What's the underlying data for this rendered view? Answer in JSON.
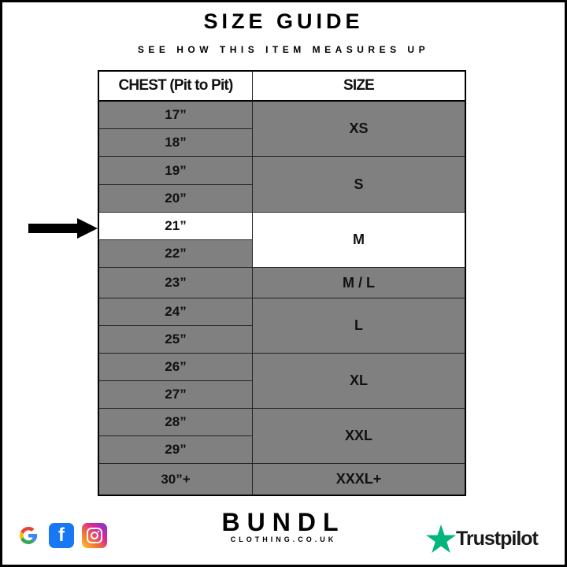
{
  "title": "SIZE GUIDE",
  "subtitle": "SEE HOW THIS ITEM MEASURES UP",
  "table": {
    "headers": [
      "CHEST (Pit to Pit)",
      "SIZE"
    ],
    "chest": [
      "17”",
      "18”",
      "19”",
      "20”",
      "21”",
      "22”",
      "23”",
      "24”",
      "25”",
      "26”",
      "27”",
      "28”",
      "29”",
      "30”+"
    ],
    "sizes": [
      {
        "label": "XS",
        "rows": 2
      },
      {
        "label": "S",
        "rows": 2
      },
      {
        "label": "M",
        "rows": 2
      },
      {
        "label": "M / L",
        "rows": 1
      },
      {
        "label": "L",
        "rows": 2
      },
      {
        "label": "XL",
        "rows": 2
      },
      {
        "label": "XXL",
        "rows": 2
      },
      {
        "label": "XXXL+",
        "rows": 1
      }
    ],
    "highlighted_chest": "21”",
    "highlighted_size": "M",
    "cell_color": "#808080",
    "highlight_color": "#ffffff"
  },
  "footer": {
    "social_icons": [
      "google-icon",
      "facebook-icon",
      "instagram-icon"
    ],
    "brand": "BUNDL",
    "brand_sub": "CLOTHING.CO.UK",
    "trustpilot": "Trustpilot",
    "trustpilot_color": "#00b67a"
  }
}
